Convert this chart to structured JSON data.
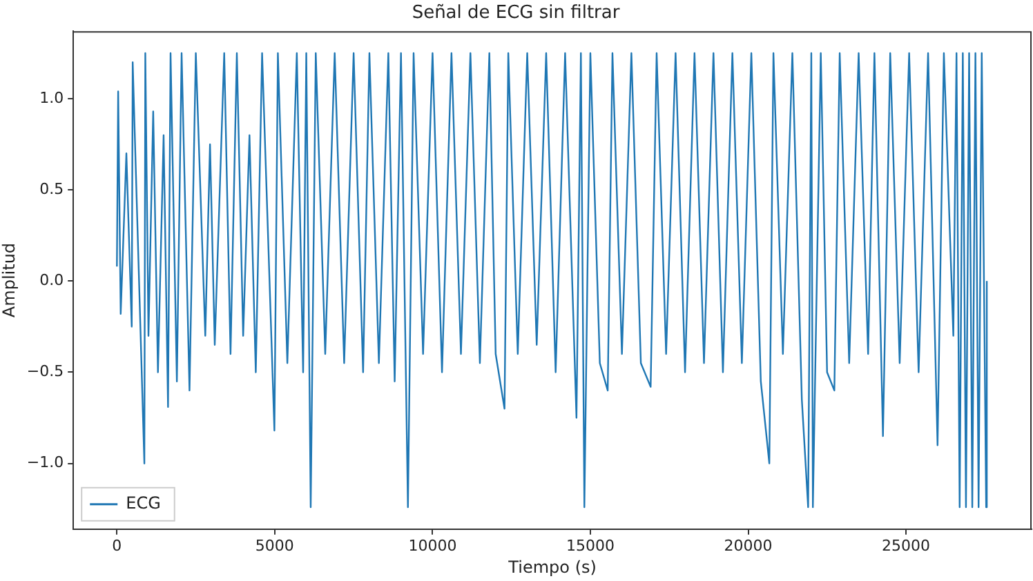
{
  "chart_data": {
    "type": "line",
    "title": "Señal de ECG sin filtrar",
    "xlabel": "Tiempo (s)",
    "ylabel": "Amplitud",
    "xlim": [
      -1380,
      28980
    ],
    "ylim": [
      -1.36,
      1.37
    ],
    "xticks": [
      0,
      5000,
      10000,
      15000,
      20000,
      25000
    ],
    "yticks": [
      {
        "value": -1,
        "label": "−1.0"
      },
      {
        "value": -0.5,
        "label": "−0.5"
      },
      {
        "value": 0,
        "label": "0.0"
      },
      {
        "value": 0.5,
        "label": "0.5"
      },
      {
        "value": 1,
        "label": "1.0"
      }
    ],
    "grid": false,
    "legend": "bottom left",
    "marker": "none",
    "line_style": "solid",
    "series": [
      {
        "name": "ECG",
        "color": "#1f77b4",
        "x": [
          0,
          40,
          120,
          300,
          470,
          500,
          870,
          900,
          1000,
          1150,
          1300,
          1480,
          1620,
          1700,
          1900,
          2050,
          2300,
          2500,
          2800,
          2950,
          3100,
          3400,
          3600,
          3800,
          4000,
          4200,
          4400,
          4600,
          4990,
          5100,
          5400,
          5700,
          5900,
          6000,
          6140,
          6300,
          6600,
          6900,
          7200,
          7500,
          7800,
          8000,
          8300,
          8600,
          8800,
          9000,
          9220,
          9400,
          9700,
          10000,
          10300,
          10600,
          10900,
          11200,
          11500,
          11800,
          12000,
          12280,
          12400,
          12700,
          13000,
          13300,
          13600,
          13900,
          14200,
          14560,
          14700,
          14810,
          15000,
          15300,
          15550,
          15700,
          16000,
          16300,
          16600,
          16910,
          17100,
          17400,
          17700,
          18000,
          18300,
          18600,
          18900,
          19200,
          19500,
          19800,
          20100,
          20400,
          20670,
          20800,
          21100,
          21400,
          21700,
          21900,
          22000,
          22050,
          22300,
          22500,
          22730,
          22900,
          23200,
          23500,
          23800,
          24000,
          24270,
          24500,
          24800,
          25100,
          25400,
          25700,
          26000,
          26200,
          26500,
          26600,
          26700,
          26800,
          26900,
          27000,
          27100,
          27200,
          27300,
          27400,
          27540,
          27560
        ],
        "values": [
          0.08,
          1.04,
          -0.18,
          0.7,
          -0.25,
          1.2,
          -1.0,
          1.25,
          -0.3,
          0.93,
          -0.5,
          0.8,
          -0.69,
          1.25,
          -0.55,
          1.25,
          -0.6,
          1.25,
          -0.3,
          0.75,
          -0.35,
          1.25,
          -0.4,
          1.25,
          -0.3,
          0.8,
          -0.5,
          1.25,
          -0.82,
          1.25,
          -0.45,
          1.25,
          -0.5,
          1.25,
          -1.24,
          1.25,
          -0.4,
          1.25,
          -0.45,
          1.25,
          -0.5,
          1.25,
          -0.45,
          1.25,
          -0.55,
          1.25,
          -1.24,
          1.25,
          -0.4,
          1.25,
          -0.5,
          1.25,
          -0.4,
          1.25,
          -0.45,
          1.25,
          -0.4,
          -0.7,
          1.25,
          -0.4,
          1.25,
          -0.35,
          1.25,
          -0.5,
          1.25,
          -0.75,
          1.25,
          -1.24,
          1.25,
          -0.45,
          -0.6,
          1.25,
          -0.4,
          1.25,
          -0.45,
          -0.58,
          1.25,
          -0.4,
          1.25,
          -0.5,
          1.25,
          -0.45,
          1.25,
          -0.5,
          1.25,
          -0.45,
          1.25,
          -0.55,
          -1.0,
          1.25,
          -0.4,
          1.25,
          -0.65,
          -1.24,
          1.25,
          -1.24,
          1.25,
          -0.5,
          -0.6,
          1.25,
          -0.45,
          1.25,
          -0.4,
          1.25,
          -0.85,
          1.25,
          -0.45,
          1.25,
          -0.5,
          1.25,
          -0.9,
          1.25,
          -0.3,
          1.25,
          -1.24,
          1.25,
          -1.24,
          1.25,
          -1.24,
          1.25,
          -1.24,
          1.25,
          -1.24,
          0.0
        ]
      }
    ]
  }
}
